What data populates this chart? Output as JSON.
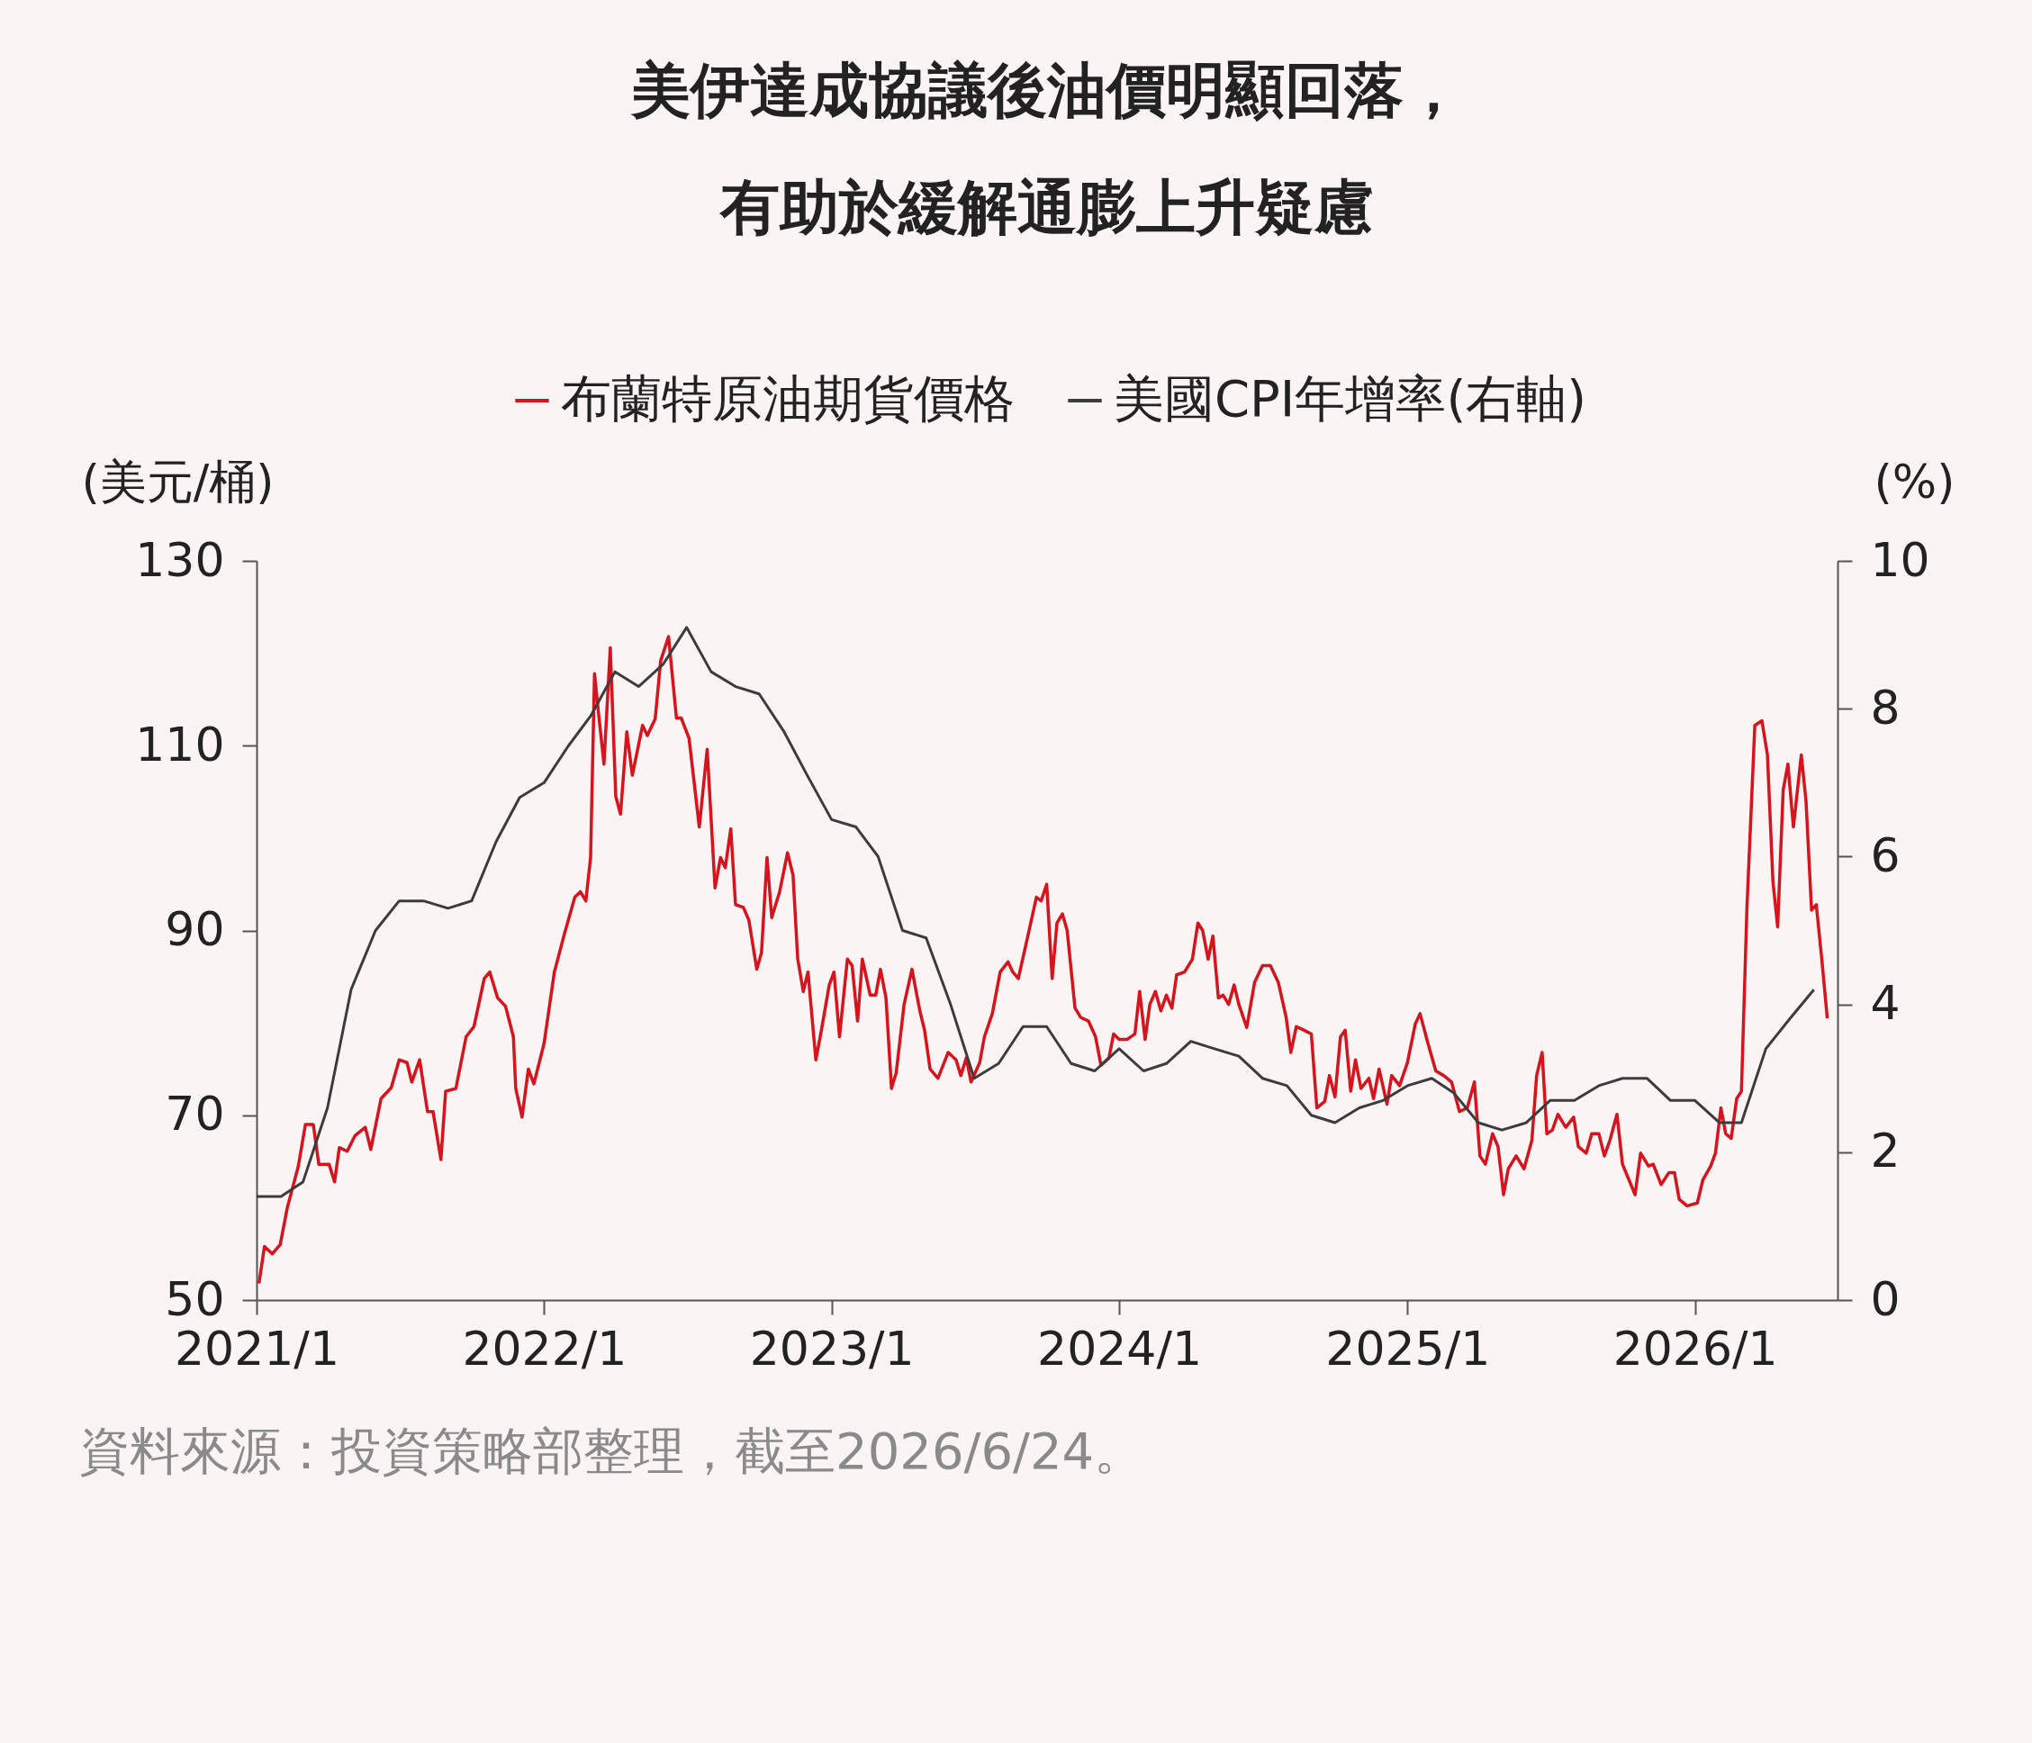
{
  "chart_data": {
    "type": "line",
    "title": "美伊達成協議後油價明顯回落，有助於緩解通膨上升疑慮",
    "ylabel": "(美元/桶)",
    "y2label": "(%)",
    "xlim": [
      "2021-01-01",
      "2026-07-01"
    ],
    "xticks": [
      {
        "value": "2021-01",
        "label": "2021/1"
      },
      {
        "value": "2022-01",
        "label": "2022/1"
      },
      {
        "value": "2023-01",
        "label": "2023/1"
      },
      {
        "value": "2024-01",
        "label": "2024/1"
      },
      {
        "value": "2025-01",
        "label": "2025/1"
      },
      {
        "value": "2026-01",
        "label": "2026/1"
      }
    ],
    "ylim": [
      50,
      130
    ],
    "yticks": [
      50,
      70,
      90,
      110,
      130
    ],
    "y2lim": [
      0,
      10
    ],
    "y2ticks": [
      0,
      2,
      4,
      6,
      8,
      10
    ],
    "legend": "top",
    "line_style": "solid",
    "annotations": [
      "資料來源：投資策略部整理，截至2026/6/24。"
    ],
    "series": [
      {
        "name": "布蘭特原油期貨價格",
        "color": "#d7141e",
        "x": [
          "2021-01-04",
          "2021-01-11",
          "2021-01-21",
          "2021-01-31",
          "2021-02-09",
          "2021-02-23",
          "2021-03-04",
          "2021-03-14",
          "2021-03-21",
          "2021-04-03",
          "2021-04-10",
          "2021-04-16",
          "2021-04-26",
          "2021-05-06",
          "2021-05-19",
          "2021-05-26",
          "2021-06-08",
          "2021-06-21",
          "2021-07-01",
          "2021-07-11",
          "2021-07-17",
          "2021-07-27",
          "2021-08-06",
          "2021-08-13",
          "2021-08-23",
          "2021-08-29",
          "2021-09-11",
          "2021-09-24",
          "2021-10-04",
          "2021-10-17",
          "2021-10-24",
          "2021-11-03",
          "2021-11-13",
          "2021-11-23",
          "2021-11-26",
          "2021-12-04",
          "2021-12-12",
          "2021-12-19",
          "2022-01-01",
          "2022-01-14",
          "2022-01-27",
          "2022-02-09",
          "2022-02-16",
          "2022-02-23",
          "2022-03-01",
          "2022-03-06",
          "2022-03-11",
          "2022-03-18",
          "2022-03-26",
          "2022-04-02",
          "2022-04-08",
          "2022-04-16",
          "2022-04-23",
          "2022-05-06",
          "2022-05-12",
          "2022-05-22",
          "2022-05-29",
          "2022-06-08",
          "2022-06-18",
          "2022-06-24",
          "2022-07-04",
          "2022-07-17",
          "2022-07-27",
          "2022-08-06",
          "2022-08-13",
          "2022-08-19",
          "2022-08-26",
          "2022-09-01",
          "2022-09-11",
          "2022-09-18",
          "2022-09-28",
          "2022-10-04",
          "2022-10-11",
          "2022-10-17",
          "2022-10-27",
          "2022-11-06",
          "2022-11-13",
          "2022-11-19",
          "2022-11-26",
          "2022-12-02",
          "2022-12-12",
          "2022-12-19",
          "2022-12-29",
          "2023-01-04",
          "2023-01-11",
          "2023-01-21",
          "2023-01-27",
          "2023-02-03",
          "2023-02-09",
          "2023-02-19",
          "2023-02-26",
          "2023-03-04",
          "2023-03-11",
          "2023-03-18",
          "2023-03-24",
          "2023-04-03",
          "2023-04-13",
          "2023-04-23",
          "2023-04-29",
          "2023-05-06",
          "2023-05-16",
          "2023-05-29",
          "2023-06-08",
          "2023-06-14",
          "2023-06-21",
          "2023-06-27",
          "2023-07-08",
          "2023-07-14",
          "2023-07-24",
          "2023-08-03",
          "2023-08-13",
          "2023-08-19",
          "2023-08-26",
          "2023-09-05",
          "2023-09-18",
          "2023-09-24",
          "2023-10-01",
          "2023-10-08",
          "2023-10-14",
          "2023-10-21",
          "2023-10-27",
          "2023-11-06",
          "2023-11-13",
          "2023-11-23",
          "2023-12-02",
          "2023-12-09",
          "2023-12-19",
          "2023-12-25",
          "2024-01-01",
          "2024-01-11",
          "2024-01-21",
          "2024-01-27",
          "2024-02-03",
          "2024-02-09",
          "2024-02-16",
          "2024-02-23",
          "2024-03-01",
          "2024-03-08",
          "2024-03-14",
          "2024-03-24",
          "2024-04-03",
          "2024-04-10",
          "2024-04-16",
          "2024-04-23",
          "2024-04-29",
          "2024-05-06",
          "2024-05-12",
          "2024-05-19",
          "2024-05-26",
          "2024-06-01",
          "2024-06-11",
          "2024-06-21",
          "2024-07-01",
          "2024-07-11",
          "2024-07-21",
          "2024-07-31",
          "2024-08-06",
          "2024-08-13",
          "2024-08-23",
          "2024-09-01",
          "2024-09-08",
          "2024-09-18",
          "2024-09-24",
          "2024-10-01",
          "2024-10-08",
          "2024-10-14",
          "2024-10-21",
          "2024-10-27",
          "2024-11-03",
          "2024-11-13",
          "2024-11-19",
          "2024-11-26",
          "2024-12-06",
          "2024-12-12",
          "2024-12-22",
          "2025-01-01",
          "2025-01-11",
          "2025-01-17",
          "2025-01-27",
          "2025-02-06",
          "2025-02-16",
          "2025-02-26",
          "2025-03-08",
          "2025-03-18",
          "2025-03-27",
          "2025-04-03",
          "2025-04-10",
          "2025-04-19",
          "2025-04-26",
          "2025-05-03",
          "2025-05-09",
          "2025-05-19",
          "2025-05-29",
          "2025-06-08",
          "2025-06-14",
          "2025-06-21",
          "2025-06-27",
          "2025-07-04",
          "2025-07-11",
          "2025-07-21",
          "2025-07-31",
          "2025-08-06",
          "2025-08-16",
          "2025-08-23",
          "2025-09-01",
          "2025-09-08",
          "2025-09-15",
          "2025-09-24",
          "2025-10-01",
          "2025-10-17",
          "2025-10-24",
          "2025-11-03",
          "2025-11-09",
          "2025-11-19",
          "2025-11-29",
          "2025-12-06",
          "2025-12-12",
          "2025-12-22",
          "2026-01-04",
          "2026-01-11",
          "2026-01-21",
          "2026-01-27",
          "2026-02-03",
          "2026-02-09",
          "2026-02-16",
          "2026-02-23",
          "2026-03-01",
          "2026-03-08",
          "2026-03-18",
          "2026-03-27",
          "2026-04-03",
          "2026-04-10",
          "2026-04-16",
          "2026-04-23",
          "2026-04-29",
          "2026-05-06",
          "2026-05-16",
          "2026-05-22",
          "2026-05-29",
          "2026-06-04",
          "2026-06-11",
          "2026-06-18"
        ],
        "values": [
          51.8,
          55.8,
          55,
          56,
          60,
          64.5,
          69,
          69,
          64.7,
          64.7,
          62.8,
          66.5,
          66.1,
          67.8,
          68.7,
          66.3,
          71.8,
          73,
          76,
          75.7,
          73.6,
          76,
          70.4,
          70.4,
          65.2,
          72.6,
          72.9,
          78.5,
          79.6,
          84.8,
          85.5,
          82.7,
          81.8,
          78.5,
          72.9,
          69.8,
          75,
          73.4,
          77.8,
          85.5,
          89.7,
          93.6,
          94.2,
          93.2,
          97.9,
          117.8,
          113.6,
          108,
          120.6,
          104.5,
          102.6,
          111.5,
          106.8,
          112.2,
          111.1,
          112.9,
          119.2,
          121.8,
          113,
          113,
          110.8,
          101.2,
          109.6,
          94.6,
          97.9,
          96.8,
          101,
          92.8,
          92.5,
          91.1,
          85.8,
          87.6,
          97.9,
          91.4,
          94.2,
          98.4,
          96,
          86.9,
          83.4,
          85.5,
          76,
          79.2,
          84.1,
          85.5,
          78.5,
          86.9,
          86.2,
          80.2,
          86.9,
          83,
          83,
          85.8,
          82.7,
          72.9,
          74.6,
          82,
          85.8,
          81.3,
          79.2,
          75,
          74,
          76.8,
          76,
          74.3,
          76.2,
          73.6,
          75.7,
          78.5,
          81,
          85.5,
          86.6,
          85.5,
          84.8,
          88.6,
          93.6,
          93.2,
          95,
          84.8,
          90.8,
          91.8,
          90,
          81.6,
          80.6,
          80.2,
          78.5,
          75.4,
          76.2,
          78.8,
          78.2,
          78.2,
          78.8,
          83.4,
          78.2,
          82,
          83.4,
          81.3,
          83,
          81.6,
          85.2,
          85.5,
          86.9,
          90.8,
          90,
          86.9,
          89.4,
          82.7,
          83,
          82,
          84.1,
          82,
          79.5,
          84.4,
          86.2,
          86.2,
          84.4,
          80.6,
          76.8,
          79.6,
          79.2,
          78.8,
          70.8,
          71.5,
          74.3,
          72,
          78.5,
          79.2,
          72.6,
          76,
          72.9,
          74,
          71.8,
          75,
          71.2,
          74.3,
          73.2,
          75.7,
          79.9,
          81,
          77.8,
          74.8,
          74.3,
          73.6,
          70.4,
          70.8,
          73.6,
          65.6,
          64.7,
          68,
          66.6,
          61.4,
          64.2,
          65.6,
          64.2,
          67.3,
          74.3,
          76.8,
          68,
          68.4,
          70.1,
          68.7,
          69.8,
          66.6,
          65.9,
          68,
          68,
          65.6,
          67.3,
          70.1,
          64.7,
          61.4,
          65.9,
          64.5,
          64.7,
          62.5,
          63.8,
          63.8,
          60.9,
          60.2,
          60.5,
          63,
          64.5,
          65.9,
          70.8,
          68,
          67.5,
          71.8,
          72.6,
          92.5,
          112.2,
          112.7,
          109,
          95.3,
          90.4,
          105.2,
          108,
          101.2,
          109,
          104,
          92.2,
          92.8,
          86.9,
          80.5
        ]
      },
      {
        "name": "美國CPI年增率(右軸)",
        "color": "#3c3c3c",
        "axis": "y2",
        "x": [
          "2021-01",
          "2021-02",
          "2021-03",
          "2021-04",
          "2021-05",
          "2021-06",
          "2021-07",
          "2021-08",
          "2021-09",
          "2021-10",
          "2021-11",
          "2021-12",
          "2022-01",
          "2022-02",
          "2022-03",
          "2022-04",
          "2022-05",
          "2022-06",
          "2022-07",
          "2022-08",
          "2022-09",
          "2022-10",
          "2022-11",
          "2022-12",
          "2023-01",
          "2023-02",
          "2023-03",
          "2023-04",
          "2023-05",
          "2023-06",
          "2023-07",
          "2023-08",
          "2023-09",
          "2023-10",
          "2023-11",
          "2023-12",
          "2024-01",
          "2024-02",
          "2024-03",
          "2024-04",
          "2024-05",
          "2024-06",
          "2024-07",
          "2024-08",
          "2024-09",
          "2024-10",
          "2024-11",
          "2024-12",
          "2025-01",
          "2025-02",
          "2025-03",
          "2025-04",
          "2025-05",
          "2025-06",
          "2025-07",
          "2025-08",
          "2025-09",
          "2025-10",
          "2025-11",
          "2025-12",
          "2026-01",
          "2026-02",
          "2026-03",
          "2026-04",
          "2026-05",
          "2026-06"
        ],
        "values": [
          1.4,
          1.4,
          1.6,
          2.6,
          4.2,
          5.0,
          5.4,
          5.4,
          5.3,
          5.4,
          6.2,
          6.8,
          7.0,
          7.5,
          7.9,
          8.5,
          8.3,
          8.6,
          9.1,
          8.5,
          8.3,
          8.2,
          7.7,
          7.1,
          6.5,
          6.4,
          6.0,
          5.0,
          4.9,
          4.0,
          3.0,
          3.2,
          3.7,
          3.7,
          3.2,
          3.1,
          3.4,
          3.1,
          3.2,
          3.5,
          3.4,
          3.3,
          3.0,
          2.9,
          2.5,
          2.4,
          2.6,
          2.7,
          2.9,
          3.0,
          2.8,
          2.4,
          2.3,
          2.4,
          2.7,
          2.7,
          2.9,
          3.0,
          3.0,
          2.7,
          2.7,
          2.4,
          2.4,
          3.4,
          3.8,
          4.2
        ]
      }
    ]
  }
}
